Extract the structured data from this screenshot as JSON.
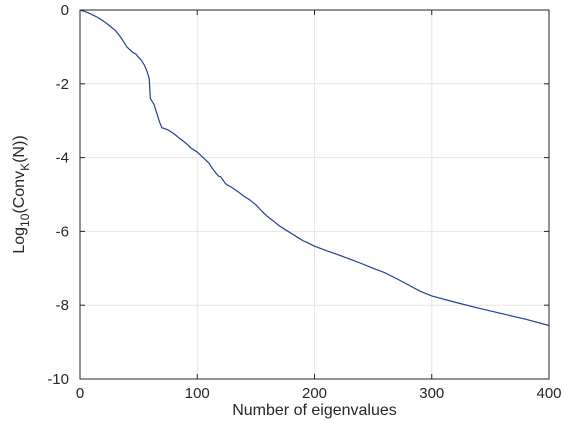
{
  "chart_data": {
    "type": "line",
    "xlabel": "Number of eigenvalues",
    "ylabel": {
      "base": "Log",
      "base_sub": "10",
      "open": "(Conv",
      "k_sub": "K",
      "close": "(N))"
    },
    "xlim": [
      0,
      400
    ],
    "ylim": [
      -10,
      0
    ],
    "x_ticks": [
      0,
      100,
      200,
      300,
      400
    ],
    "y_ticks": [
      0,
      -2,
      -4,
      -6,
      -8,
      -10
    ],
    "grid": true,
    "legend": "none",
    "series": [
      {
        "color": "#1f3fa0",
        "x": [
          0,
          5,
          10,
          15,
          20,
          25,
          30,
          35,
          40,
          45,
          48,
          49,
          50,
          52,
          55,
          57,
          59,
          60,
          61,
          63,
          65,
          68,
          70,
          71,
          75,
          80,
          85,
          90,
          95,
          100,
          105,
          110,
          113,
          116,
          118,
          120,
          124,
          126,
          128,
          130,
          135,
          140,
          145,
          150,
          155,
          160,
          165,
          170,
          175,
          180,
          185,
          190,
          195,
          200,
          210,
          220,
          230,
          240,
          250,
          260,
          270,
          280,
          290,
          300,
          320,
          340,
          360,
          380,
          400
        ],
        "y": [
          0,
          -0.05,
          -0.12,
          -0.2,
          -0.3,
          -0.42,
          -0.55,
          -0.75,
          -1.0,
          -1.15,
          -1.2,
          -1.25,
          -1.28,
          -1.35,
          -1.5,
          -1.65,
          -1.85,
          -2.4,
          -2.45,
          -2.55,
          -2.75,
          -3.05,
          -3.2,
          -3.2,
          -3.25,
          -3.35,
          -3.48,
          -3.6,
          -3.75,
          -3.85,
          -4.0,
          -4.15,
          -4.3,
          -4.42,
          -4.5,
          -4.52,
          -4.7,
          -4.75,
          -4.78,
          -4.82,
          -4.93,
          -5.05,
          -5.15,
          -5.28,
          -5.45,
          -5.6,
          -5.72,
          -5.85,
          -5.95,
          -6.05,
          -6.15,
          -6.25,
          -6.32,
          -6.4,
          -6.52,
          -6.63,
          -6.75,
          -6.87,
          -7.0,
          -7.12,
          -7.28,
          -7.45,
          -7.62,
          -7.75,
          -7.92,
          -8.08,
          -8.23,
          -8.38,
          -8.55
        ]
      }
    ]
  }
}
